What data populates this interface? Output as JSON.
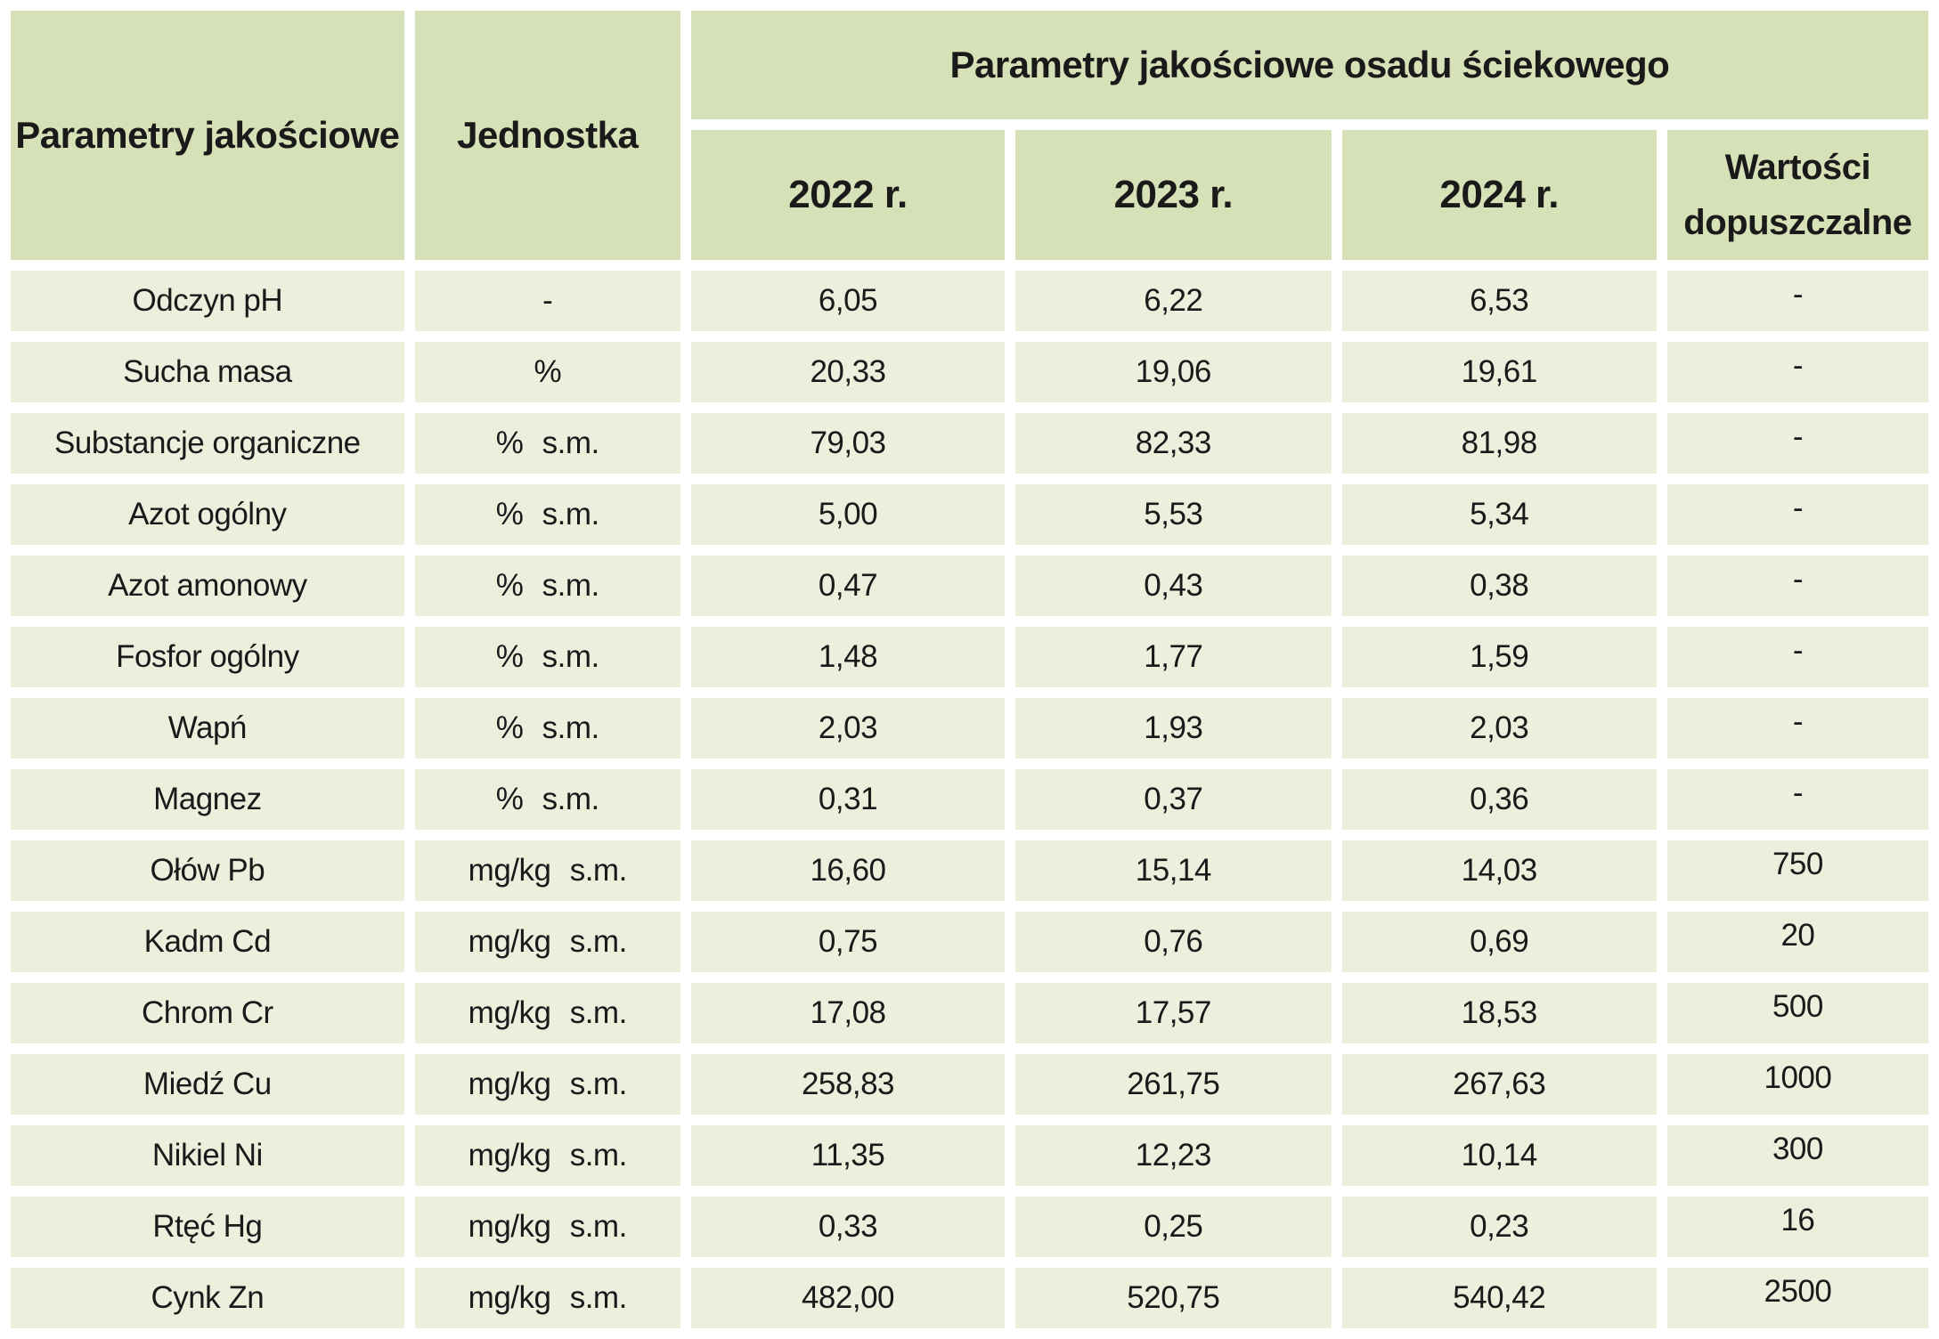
{
  "chart_data": {
    "type": "table",
    "title": "Parametry jakościowe osadu ściekowego",
    "columns": [
      "Parametry jakościowe",
      "Jednostka",
      "2022 r.",
      "2023 r.",
      "2024 r.",
      "Wartości dopuszczalne"
    ],
    "rows": [
      [
        "Odczyn pH",
        "-",
        "6,05",
        "6,22",
        "6,53",
        "-"
      ],
      [
        "Sucha masa",
        "%",
        "20,33",
        "19,06",
        "19,61",
        "-"
      ],
      [
        "Substancje organiczne",
        "% s.m.",
        "79,03",
        "82,33",
        "81,98",
        "-"
      ],
      [
        "Azot ogólny",
        "% s.m.",
        "5,00",
        "5,53",
        "5,34",
        "-"
      ],
      [
        "Azot amonowy",
        "% s.m.",
        "0,47",
        "0,43",
        "0,38",
        "-"
      ],
      [
        "Fosfor ogólny",
        "% s.m.",
        "1,48",
        "1,77",
        "1,59",
        "-"
      ],
      [
        "Wapń",
        "% s.m.",
        "2,03",
        "1,93",
        "2,03",
        "-"
      ],
      [
        "Magnez",
        "% s.m.",
        "0,31",
        "0,37",
        "0,36",
        "-"
      ],
      [
        "Ołów Pb",
        "mg/kg s.m.",
        "16,60",
        "15,14",
        "14,03",
        "750"
      ],
      [
        "Kadm Cd",
        "mg/kg s.m.",
        "0,75",
        "0,76",
        "0,69",
        "20"
      ],
      [
        "Chrom Cr",
        "mg/kg s.m.",
        "17,08",
        "17,57",
        "18,53",
        "500"
      ],
      [
        "Miedź Cu",
        "mg/kg s.m.",
        "258,83",
        "261,75",
        "267,63",
        "1000"
      ],
      [
        "Nikiel Ni",
        "mg/kg s.m.",
        "11,35",
        "12,23",
        "10,14",
        "300"
      ],
      [
        "Rtęć Hg",
        "mg/kg s.m.",
        "0,33",
        "0,25",
        "0,23",
        "16"
      ],
      [
        "Cynk Zn",
        "mg/kg s.m.",
        "482,00",
        "520,75",
        "540,42",
        "2500"
      ]
    ]
  },
  "colors": {
    "header_bg": "#d6e1b8",
    "row_bg": "#ebf0dd",
    "text": "#1a1a1a",
    "background": "#ffffff"
  }
}
